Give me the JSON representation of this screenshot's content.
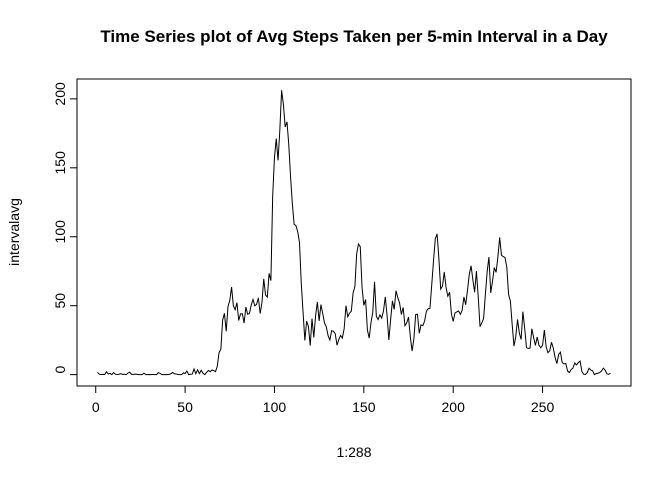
{
  "chart_data": {
    "type": "line",
    "title": "Time Series plot of Avg Steps Taken per 5-min Interval in a Day",
    "x_label": "1:288",
    "y_label": "intervalavg",
    "color": "#000000",
    "xlim": [
      -10.48,
      299.48
    ],
    "ylim": [
      -8.25,
      214.42
    ],
    "xticks": [
      0,
      50,
      100,
      150,
      200,
      250
    ],
    "yticks": [
      0,
      50,
      100,
      150,
      200
    ],
    "values": [
      1.7,
      0.3,
      0.1,
      0.2,
      0.1,
      2.1,
      0.5,
      0.9,
      0,
      1.5,
      0.3,
      0.1,
      0.3,
      0.7,
      0.2,
      0.3,
      0,
      1.1,
      1.8,
      0.2,
      0.2,
      0.4,
      0.3,
      0,
      0,
      0,
      1.1,
      0,
      0,
      0.1,
      0,
      0.2,
      0,
      0,
      1.5,
      0.9,
      0,
      0,
      0,
      0,
      0.2,
      0.6,
      1.6,
      0.6,
      0.5,
      0.1,
      0,
      0,
      1.2,
      0.9,
      2.6,
      0,
      0.3,
      0.4,
      4.1,
      0.7,
      3.5,
      0.8,
      3.1,
      1.1,
      0,
      1.6,
      3.0,
      2.2,
      3.3,
      3.0,
      2.1,
      6.1,
      16.0,
      18.3,
      39.5,
      44.5,
      31.5,
      49.3,
      53.8,
      63.5,
      50.0,
      47.1,
      52.2,
      39.3,
      44.0,
      44.2,
      37.4,
      49.0,
      43.8,
      44.4,
      50.5,
      54.5,
      49.9,
      51.0,
      55.7,
      44.3,
      52.3,
      69.5,
      57.8,
      56.2,
      73.4,
      68.2,
      129.4,
      157.5,
      171.2,
      155.4,
      177.3,
      206.2,
      195.9,
      179.6,
      183.4,
      167.0,
      143.5,
      124.0,
      109.1,
      108.1,
      103.7,
      96.0,
      66.2,
      45.2,
      24.8,
      38.8,
      35.0,
      21.1,
      40.6,
      27.0,
      42.4,
      52.7,
      38.9,
      50.8,
      44.3,
      37.4,
      34.7,
      28.3,
      25.1,
      31.9,
      31.4,
      29.7,
      21.3,
      25.5,
      28.4,
      26.5,
      33.4,
      50.0,
      42.0,
      44.6,
      46.0,
      59.3,
      63.9,
      87.7,
      94.8,
      92.8,
      63.4,
      50.2,
      54.5,
      32.4,
      26.5,
      37.7,
      45.1,
      67.3,
      42.3,
      39.9,
      43.3,
      41.0,
      46.2,
      56.4,
      42.8,
      25.1,
      40.0,
      53.5,
      47.3,
      60.8,
      55.8,
      52.0,
      43.6,
      48.7,
      35.5,
      37.5,
      41.8,
      27.5,
      17.1,
      26.1,
      43.6,
      43.8,
      30.0,
      36.1,
      35.5,
      38.8,
      46.0,
      47.8,
      48.1,
      65.3,
      82.9,
      98.7,
      102.1,
      84.0,
      62.1,
      64.1,
      74.5,
      63.2,
      56.9,
      59.8,
      43.9,
      38.6,
      44.7,
      45.5,
      46.2,
      43.7,
      46.6,
      56.3,
      50.7,
      61.2,
      72.7,
      78.9,
      68.9,
      59.7,
      75.1,
      56.5,
      34.8,
      37.5,
      40.7,
      58.0,
      74.7,
      85.3,
      59.3,
      67.8,
      77.7,
      74.2,
      85.3,
      99.5,
      86.6,
      85.6,
      84.9,
      77.8,
      58.0,
      53.4,
      36.3,
      20.7,
      27.4,
      40.0,
      30.2,
      25.5,
      45.7,
      33.5,
      19.6,
      19.0,
      19.3,
      33.3,
      26.8,
      21.2,
      27.3,
      21.3,
      19.5,
      21.3,
      32.3,
      20.2,
      15.9,
      17.2,
      23.5,
      19.2,
      12.5,
      8.0,
      14.7,
      16.3,
      8.7,
      7.8,
      8.1,
      2.6,
      1.5,
      3.7,
      4.8,
      8.5,
      7.1,
      8.7,
      9.8,
      2.2,
      0.3,
      0.1,
      1.6,
      4.6,
      3.3,
      2.8,
      0,
      0.8,
      1.0,
      1.6,
      2.6,
      4.7,
      3.3,
      0.6,
      0.2,
      1.1
    ]
  }
}
